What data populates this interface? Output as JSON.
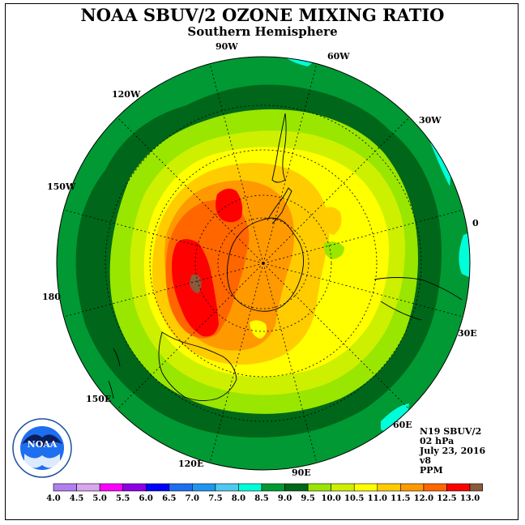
{
  "title": "NOAA SBUV/2 OZONE MIXING RATIO",
  "subtitle": "Southern Hemisphere",
  "longitude_labels": {
    "lon_90W": "90W",
    "lon_60W": "60W",
    "lon_120W": "120W",
    "lon_30W": "30W",
    "lon_150W": "150W",
    "lon_0": "0",
    "lon_180": "180",
    "lon_30E": "30E",
    "lon_150E": "150E",
    "lon_60E": "60E",
    "lon_120E": "120E",
    "lon_90E": "90E"
  },
  "info": {
    "satellite": "N19 SBUV/2",
    "level": "02 hPa",
    "date": "July 23, 2016",
    "version": "v8",
    "units": "PPM"
  },
  "logo": {
    "text": "NOAA"
  },
  "colorbar": {
    "labels": [
      "4.0",
      "4.5",
      "5.0",
      "5.5",
      "6.0",
      "6.5",
      "7.0",
      "7.5",
      "8.0",
      "8.5",
      "9.0",
      "9.5",
      "10.0",
      "10.5",
      "11.0",
      "11.5",
      "12.0",
      "12.5",
      "13.0"
    ],
    "colors": [
      "#b27ff0",
      "#d9a6f0",
      "#ff00ff",
      "#8c00e6",
      "#0000ff",
      "#1e6ef0",
      "#1e96f0",
      "#50c8f0",
      "#00ffd9",
      "#009933",
      "#006619",
      "#99e600",
      "#ccf000",
      "#ffff00",
      "#ffcc00",
      "#ff9900",
      "#ff6600",
      "#ff0000",
      "#8b5a3c"
    ]
  },
  "map_colors": {
    "bg": "#009933",
    "dark_green": "#006619",
    "lime": "#99e600",
    "yellow_green": "#ccf000",
    "yellow": "#ffff00",
    "gold": "#ffcc00",
    "orange": "#ff9900",
    "dark_orange": "#ff6600",
    "red": "#ff0000",
    "brown": "#8b5a3c",
    "cyan": "#00ffd9"
  }
}
